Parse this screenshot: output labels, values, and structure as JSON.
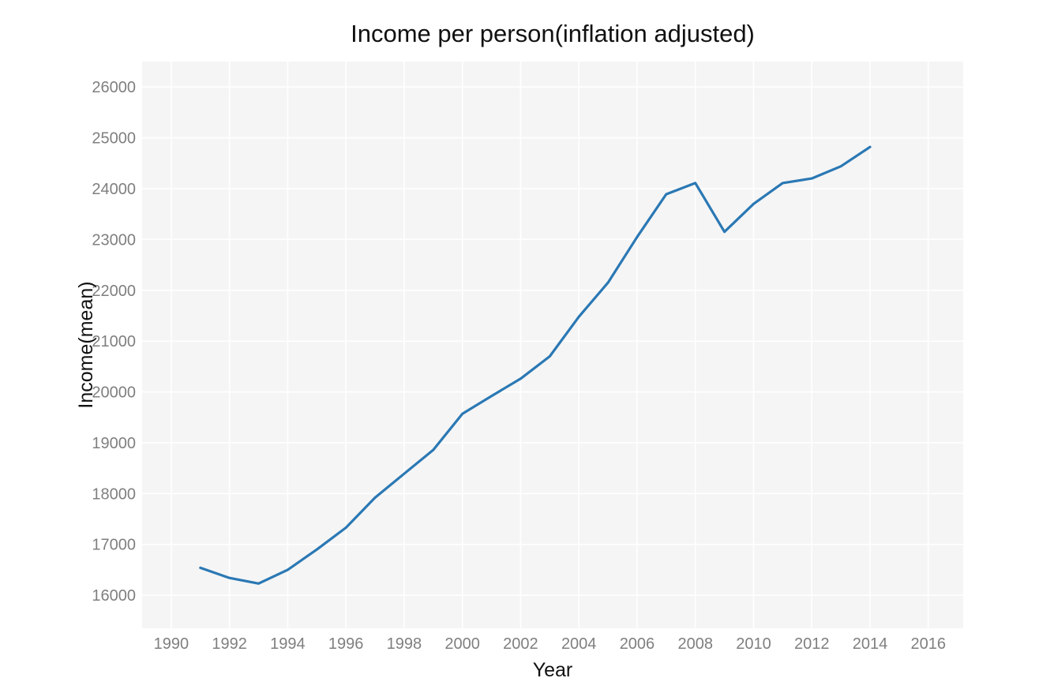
{
  "chart_data": {
    "type": "line",
    "title": "Income per person(inflation adjusted)",
    "xlabel": "Year",
    "ylabel": "Income(mean)",
    "xlim": [
      1989,
      2017.2
    ],
    "ylim": [
      15350,
      26500
    ],
    "xticks": [
      1990,
      1992,
      1994,
      1996,
      1998,
      2000,
      2002,
      2004,
      2006,
      2008,
      2010,
      2012,
      2014,
      2016
    ],
    "yticks": [
      16000,
      17000,
      18000,
      19000,
      20000,
      21000,
      22000,
      23000,
      24000,
      25000,
      26000
    ],
    "grid": true,
    "legend": "none",
    "colors": {
      "panel": "#f5f5f5",
      "grid": "#ffffff",
      "line": "#2a78b4",
      "tick_text": "#7f7f7f"
    },
    "series": [
      {
        "x": [
          1991,
          1992,
          1993,
          1994,
          1995,
          1996,
          1997,
          1998,
          1999,
          2000,
          2001,
          2002,
          2003,
          2004,
          2005,
          2006,
          2007,
          2008,
          2009,
          2010,
          2011,
          2012,
          2013,
          2014
        ],
        "values": [
          16540,
          16340,
          16230,
          16500,
          16900,
          17330,
          17920,
          18390,
          18860,
          19570,
          19920,
          20260,
          20700,
          21480,
          22150,
          23050,
          23890,
          24110,
          23150,
          23700,
          24110,
          24200,
          24440,
          24820
        ]
      }
    ]
  }
}
